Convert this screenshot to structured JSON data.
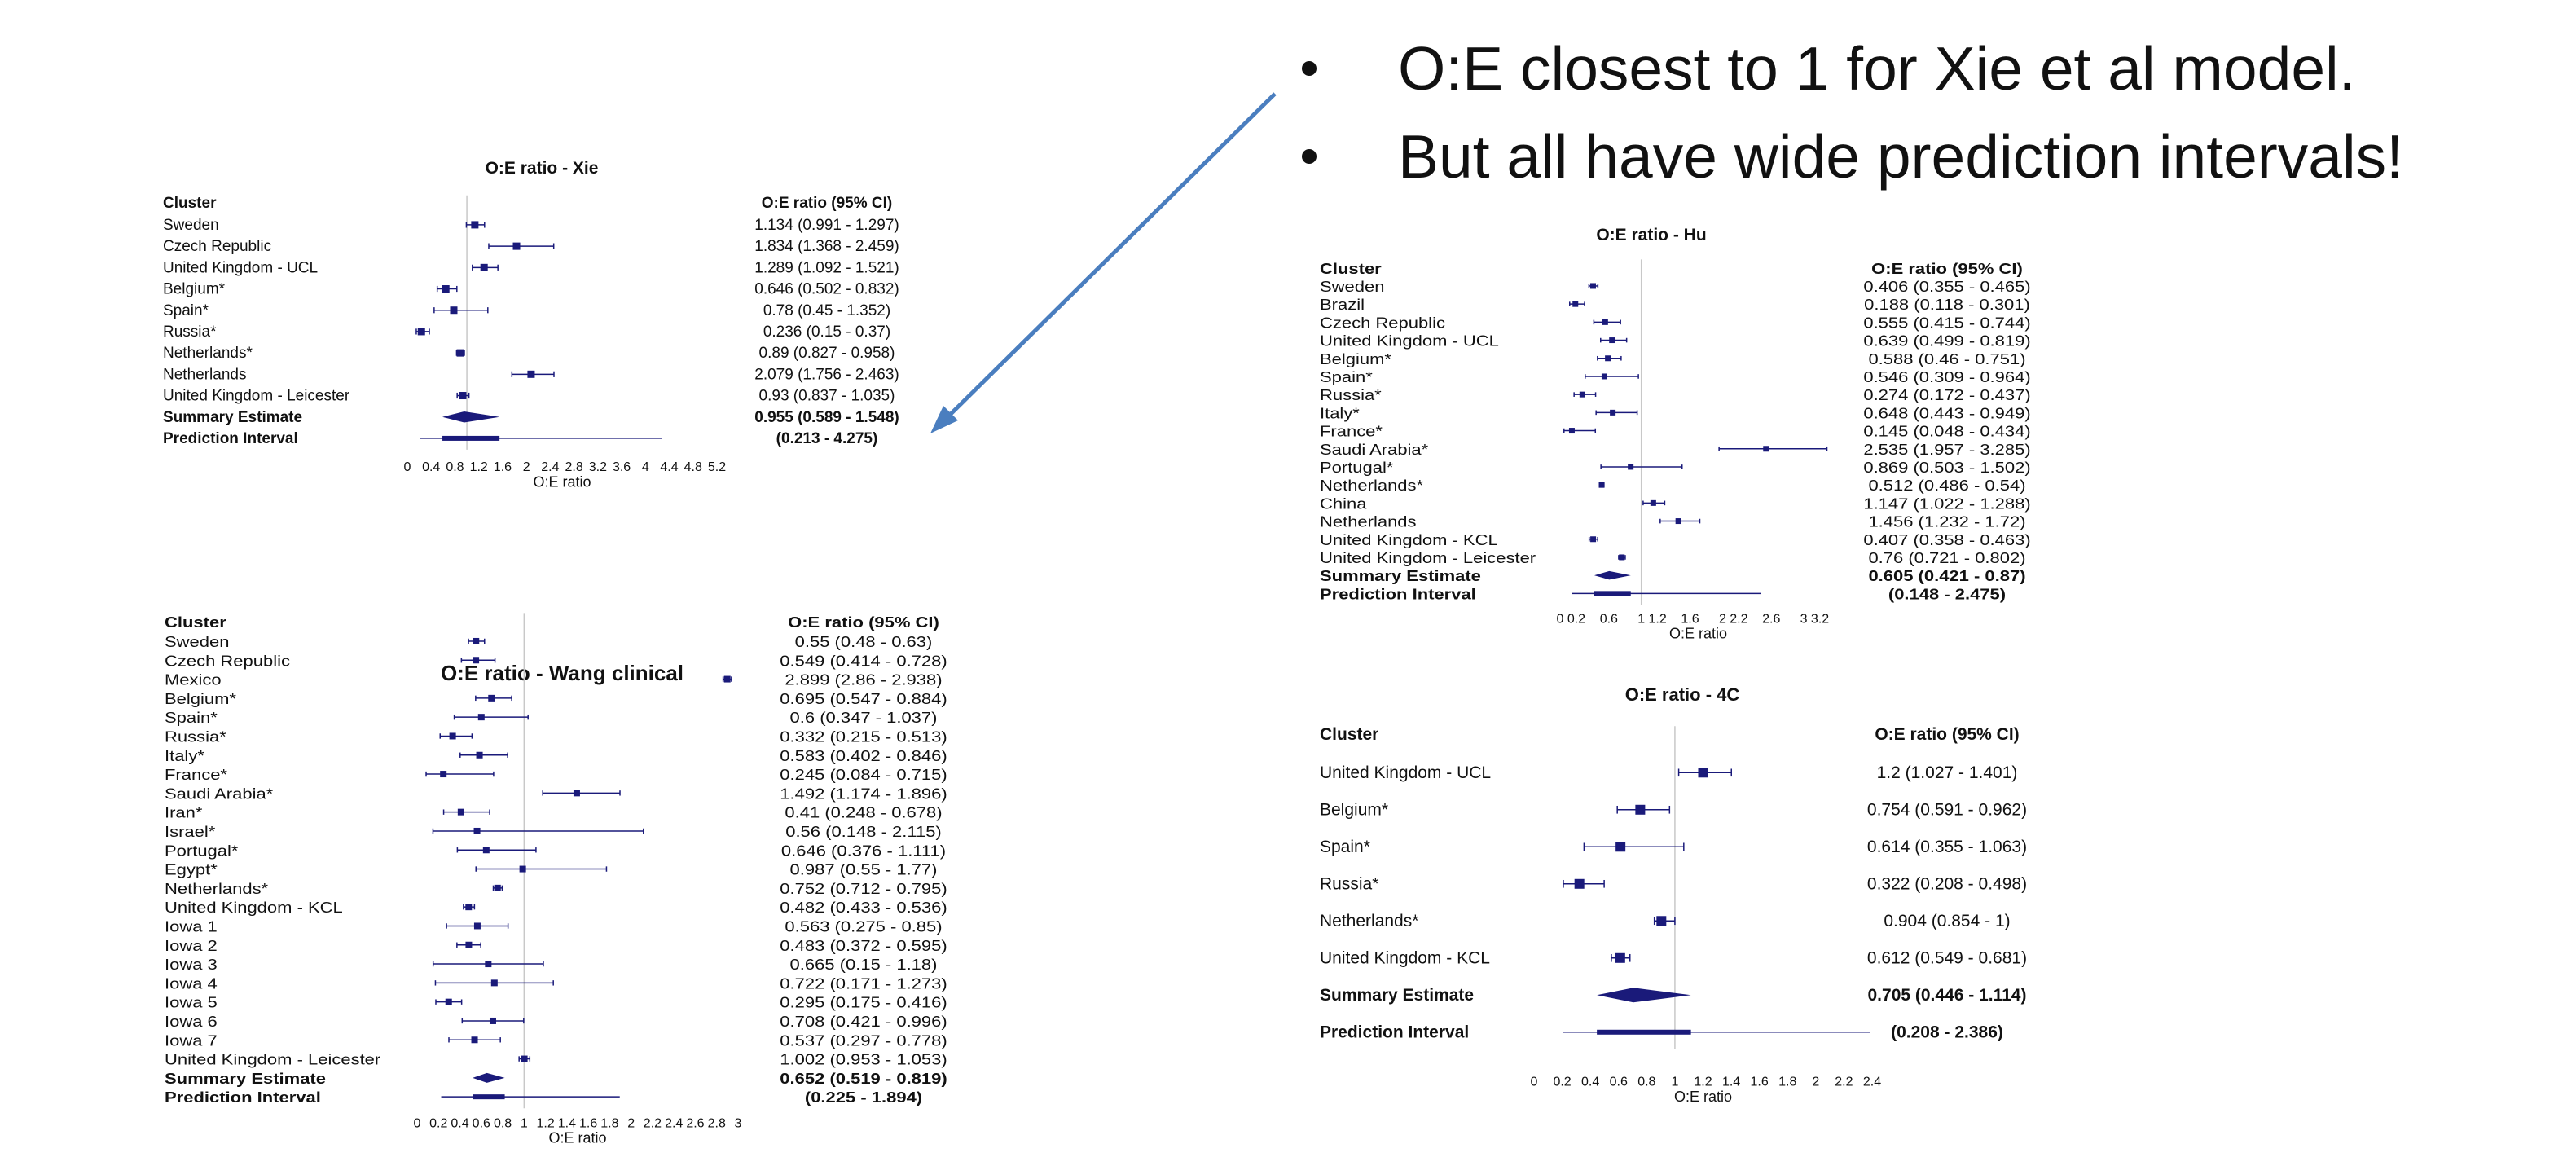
{
  "bullets": [
    "O:E closest to 1 for Xie et al model.",
    "But all have wide prediction intervals!"
  ],
  "chart_data": [
    {
      "type": "forest",
      "title": "O:E ratio - Xie",
      "cluster_header": "Cluster",
      "ci_header": "O:E ratio (95% CI)",
      "xlabel": "O:E ratio",
      "reference_line": 1,
      "xlim": [
        0,
        5.2
      ],
      "ticks": [
        "0",
        "0.4",
        "0.8",
        "1.2",
        "1.6",
        "2",
        "2.4",
        "2.8",
        "3.2",
        "3.6",
        "4",
        "4.4",
        "4.8",
        "5.2"
      ],
      "rows": [
        {
          "label": "Sweden",
          "est": 1.134,
          "lo": 0.991,
          "hi": 1.297,
          "ci": "1.134 (0.991 - 1.297)"
        },
        {
          "label": "Czech Republic",
          "est": 1.834,
          "lo": 1.368,
          "hi": 2.459,
          "ci": "1.834 (1.368 - 2.459)"
        },
        {
          "label": "United Kingdom - UCL",
          "est": 1.289,
          "lo": 1.092,
          "hi": 1.521,
          "ci": "1.289 (1.092 - 1.521)"
        },
        {
          "label": "Belgium*",
          "est": 0.646,
          "lo": 0.502,
          "hi": 0.832,
          "ci": "0.646 (0.502 - 0.832)"
        },
        {
          "label": "Spain*",
          "est": 0.78,
          "lo": 0.45,
          "hi": 1.352,
          "ci": "0.78 (0.45 - 1.352)"
        },
        {
          "label": "Russia*",
          "est": 0.236,
          "lo": 0.15,
          "hi": 0.37,
          "ci": "0.236 (0.15 - 0.37)"
        },
        {
          "label": "Netherlands*",
          "est": 0.89,
          "lo": 0.827,
          "hi": 0.958,
          "ci": "0.89 (0.827 - 0.958)"
        },
        {
          "label": "Netherlands",
          "est": 2.079,
          "lo": 1.756,
          "hi": 2.463,
          "ci": "2.079 (1.756 - 2.463)"
        },
        {
          "label": "United Kingdom - Leicester",
          "est": 0.93,
          "lo": 0.837,
          "hi": 1.035,
          "ci": "0.93 (0.837 - 1.035)"
        }
      ],
      "summary": {
        "label": "Summary Estimate",
        "est": 0.955,
        "lo": 0.589,
        "hi": 1.548,
        "ci": "0.955 (0.589 - 1.548)"
      },
      "prediction": {
        "label": "Prediction Interval",
        "lo": 0.213,
        "hi": 4.275,
        "ci": "(0.213 - 4.275)"
      }
    },
    {
      "type": "forest",
      "title": "O:E ratio - Wang clinical",
      "cluster_header": "Cluster",
      "ci_header": "O:E ratio (95% CI)",
      "xlabel": "O:E ratio",
      "reference_line": 1,
      "xlim": [
        0,
        3
      ],
      "ticks": [
        "0",
        "0.2",
        "0.4",
        "0.6",
        "0.8",
        "1",
        "1.2",
        "1.4",
        "1.6",
        "1.8",
        "2",
        "2.2",
        "2.4",
        "2.6",
        "2.8",
        "3"
      ],
      "rows": [
        {
          "label": "Sweden",
          "est": 0.55,
          "lo": 0.48,
          "hi": 0.63,
          "ci": "0.55 (0.48 - 0.63)"
        },
        {
          "label": "Czech Republic",
          "est": 0.549,
          "lo": 0.414,
          "hi": 0.728,
          "ci": "0.549 (0.414 - 0.728)"
        },
        {
          "label": "Mexico",
          "est": 2.899,
          "lo": 2.86,
          "hi": 2.938,
          "ci": "2.899 (2.86 - 2.938)"
        },
        {
          "label": "Belgium*",
          "est": 0.695,
          "lo": 0.547,
          "hi": 0.884,
          "ci": "0.695 (0.547 - 0.884)"
        },
        {
          "label": "Spain*",
          "est": 0.6,
          "lo": 0.347,
          "hi": 1.037,
          "ci": "0.6 (0.347 - 1.037)"
        },
        {
          "label": "Russia*",
          "est": 0.332,
          "lo": 0.215,
          "hi": 0.513,
          "ci": "0.332 (0.215 - 0.513)"
        },
        {
          "label": "Italy*",
          "est": 0.583,
          "lo": 0.402,
          "hi": 0.846,
          "ci": "0.583 (0.402 - 0.846)"
        },
        {
          "label": "France*",
          "est": 0.245,
          "lo": 0.084,
          "hi": 0.715,
          "ci": "0.245 (0.084 - 0.715)"
        },
        {
          "label": "Saudi Arabia*",
          "est": 1.492,
          "lo": 1.174,
          "hi": 1.896,
          "ci": "1.492 (1.174 - 1.896)"
        },
        {
          "label": "Iran*",
          "est": 0.41,
          "lo": 0.248,
          "hi": 0.678,
          "ci": "0.41 (0.248 - 0.678)"
        },
        {
          "label": "Israel*",
          "est": 0.56,
          "lo": 0.148,
          "hi": 2.115,
          "ci": "0.56 (0.148 - 2.115)"
        },
        {
          "label": "Portugal*",
          "est": 0.646,
          "lo": 0.376,
          "hi": 1.111,
          "ci": "0.646 (0.376 - 1.111)"
        },
        {
          "label": "Egypt*",
          "est": 0.987,
          "lo": 0.55,
          "hi": 1.77,
          "ci": "0.987 (0.55 - 1.77)"
        },
        {
          "label": "Netherlands*",
          "est": 0.752,
          "lo": 0.712,
          "hi": 0.795,
          "ci": "0.752 (0.712 - 0.795)"
        },
        {
          "label": "United Kingdom - KCL",
          "est": 0.482,
          "lo": 0.433,
          "hi": 0.536,
          "ci": "0.482 (0.433 - 0.536)"
        },
        {
          "label": "Iowa 1",
          "est": 0.563,
          "lo": 0.275,
          "hi": 0.85,
          "ci": "0.563 (0.275 - 0.85)"
        },
        {
          "label": "Iowa 2",
          "est": 0.483,
          "lo": 0.372,
          "hi": 0.595,
          "ci": "0.483 (0.372 - 0.595)"
        },
        {
          "label": "Iowa 3",
          "est": 0.665,
          "lo": 0.15,
          "hi": 1.18,
          "ci": "0.665 (0.15 - 1.18)"
        },
        {
          "label": "Iowa 4",
          "est": 0.722,
          "lo": 0.171,
          "hi": 1.273,
          "ci": "0.722 (0.171 - 1.273)"
        },
        {
          "label": "Iowa 5",
          "est": 0.295,
          "lo": 0.175,
          "hi": 0.416,
          "ci": "0.295 (0.175 - 0.416)"
        },
        {
          "label": "Iowa 6",
          "est": 0.708,
          "lo": 0.421,
          "hi": 0.996,
          "ci": "0.708 (0.421 - 0.996)"
        },
        {
          "label": "Iowa 7",
          "est": 0.537,
          "lo": 0.297,
          "hi": 0.778,
          "ci": "0.537 (0.297 - 0.778)"
        },
        {
          "label": "United Kingdom - Leicester",
          "est": 1.002,
          "lo": 0.953,
          "hi": 1.053,
          "ci": "1.002 (0.953 - 1.053)"
        }
      ],
      "summary": {
        "label": "Summary Estimate",
        "est": 0.652,
        "lo": 0.519,
        "hi": 0.819,
        "ci": "0.652 (0.519 - 0.819)"
      },
      "prediction": {
        "label": "Prediction Interval",
        "lo": 0.225,
        "hi": 1.894,
        "ci": "(0.225 - 1.894)"
      }
    },
    {
      "type": "forest",
      "title": "O:E ratio - Hu",
      "cluster_header": "Cluster",
      "ci_header": "O:E ratio (95% CI)",
      "xlabel": "O:E ratio",
      "reference_line": 1,
      "xlim": [
        0,
        3.4
      ],
      "ticks": [
        "0",
        "0.2",
        "0.6",
        "1",
        "1.2",
        "1.6",
        "2",
        "2.2",
        "2.6",
        "3",
        "3.2"
      ],
      "tick_values": [
        0,
        0.2,
        0.6,
        1,
        1.2,
        1.6,
        2,
        2.2,
        2.6,
        3,
        3.2
      ],
      "rows": [
        {
          "label": "Sweden",
          "est": 0.406,
          "lo": 0.355,
          "hi": 0.465,
          "ci": "0.406 (0.355 - 0.465)"
        },
        {
          "label": "Brazil",
          "est": 0.188,
          "lo": 0.118,
          "hi": 0.301,
          "ci": "0.188 (0.118 - 0.301)"
        },
        {
          "label": "Czech Republic",
          "est": 0.555,
          "lo": 0.415,
          "hi": 0.744,
          "ci": "0.555 (0.415 - 0.744)"
        },
        {
          "label": "United Kingdom - UCL",
          "est": 0.639,
          "lo": 0.499,
          "hi": 0.819,
          "ci": "0.639 (0.499 - 0.819)"
        },
        {
          "label": "Belgium*",
          "est": 0.588,
          "lo": 0.46,
          "hi": 0.751,
          "ci": "0.588 (0.46 - 0.751)"
        },
        {
          "label": "Spain*",
          "est": 0.546,
          "lo": 0.309,
          "hi": 0.964,
          "ci": "0.546 (0.309 - 0.964)"
        },
        {
          "label": "Russia*",
          "est": 0.274,
          "lo": 0.172,
          "hi": 0.437,
          "ci": "0.274 (0.172 - 0.437)"
        },
        {
          "label": "Italy*",
          "est": 0.648,
          "lo": 0.443,
          "hi": 0.949,
          "ci": "0.648 (0.443 - 0.949)"
        },
        {
          "label": "France*",
          "est": 0.145,
          "lo": 0.048,
          "hi": 0.434,
          "ci": "0.145 (0.048 - 0.434)"
        },
        {
          "label": "Saudi Arabia*",
          "est": 2.535,
          "lo": 1.957,
          "hi": 3.285,
          "ci": "2.535 (1.957 - 3.285)"
        },
        {
          "label": "Portugal*",
          "est": 0.869,
          "lo": 0.503,
          "hi": 1.502,
          "ci": "0.869 (0.503 - 1.502)"
        },
        {
          "label": "Netherlands*",
          "est": 0.512,
          "lo": 0.486,
          "hi": 0.54,
          "ci": "0.512 (0.486 - 0.54)"
        },
        {
          "label": "China",
          "est": 1.147,
          "lo": 1.022,
          "hi": 1.288,
          "ci": "1.147 (1.022 - 1.288)"
        },
        {
          "label": "Netherlands",
          "est": 1.456,
          "lo": 1.232,
          "hi": 1.72,
          "ci": "1.456 (1.232 - 1.72)"
        },
        {
          "label": "United Kingdom - KCL",
          "est": 0.407,
          "lo": 0.358,
          "hi": 0.463,
          "ci": "0.407 (0.358 - 0.463)"
        },
        {
          "label": "United Kingdom - Leicester",
          "est": 0.76,
          "lo": 0.721,
          "hi": 0.802,
          "ci": "0.76 (0.721 - 0.802)"
        }
      ],
      "summary": {
        "label": "Summary Estimate",
        "est": 0.605,
        "lo": 0.421,
        "hi": 0.87,
        "ci": "0.605 (0.421 - 0.87)"
      },
      "prediction": {
        "label": "Prediction Interval",
        "lo": 0.148,
        "hi": 2.475,
        "ci": "(0.148 - 2.475)"
      }
    },
    {
      "type": "forest",
      "title": "O:E ratio - 4C",
      "cluster_header": "Cluster",
      "ci_header": "O:E ratio (95% CI)",
      "xlabel": "O:E ratio",
      "reference_line": 1,
      "xlim": [
        0,
        2.4
      ],
      "ticks": [
        "0",
        "0.2",
        "0.4",
        "0.6",
        "0.8",
        "1",
        "1.2",
        "1.4",
        "1.6",
        "1.8",
        "2",
        "2.2",
        "2.4"
      ],
      "rows": [
        {
          "label": "United Kingdom - UCL",
          "est": 1.2,
          "lo": 1.027,
          "hi": 1.401,
          "ci": "1.2 (1.027 - 1.401)"
        },
        {
          "label": "Belgium*",
          "est": 0.754,
          "lo": 0.591,
          "hi": 0.962,
          "ci": "0.754 (0.591 - 0.962)"
        },
        {
          "label": "Spain*",
          "est": 0.614,
          "lo": 0.355,
          "hi": 1.063,
          "ci": "0.614 (0.355 - 1.063)"
        },
        {
          "label": "Russia*",
          "est": 0.322,
          "lo": 0.208,
          "hi": 0.498,
          "ci": "0.322 (0.208 - 0.498)"
        },
        {
          "label": "Netherlands*",
          "est": 0.904,
          "lo": 0.854,
          "hi": 1,
          "ci": "0.904 (0.854 - 1)"
        },
        {
          "label": "United Kingdom - KCL",
          "est": 0.612,
          "lo": 0.549,
          "hi": 0.681,
          "ci": "0.612 (0.549 - 0.681)"
        }
      ],
      "summary": {
        "label": "Summary Estimate",
        "est": 0.705,
        "lo": 0.446,
        "hi": 1.114,
        "ci": "0.705 (0.446 - 1.114)"
      },
      "prediction": {
        "label": "Prediction Interval",
        "lo": 0.208,
        "hi": 2.386,
        "ci": "(0.208 - 2.386)"
      }
    }
  ],
  "colors": {
    "marker": "#1a1a7a",
    "text": "#111111",
    "reference_line": "#c8c8c8",
    "arrow": "#4a7ebf"
  }
}
